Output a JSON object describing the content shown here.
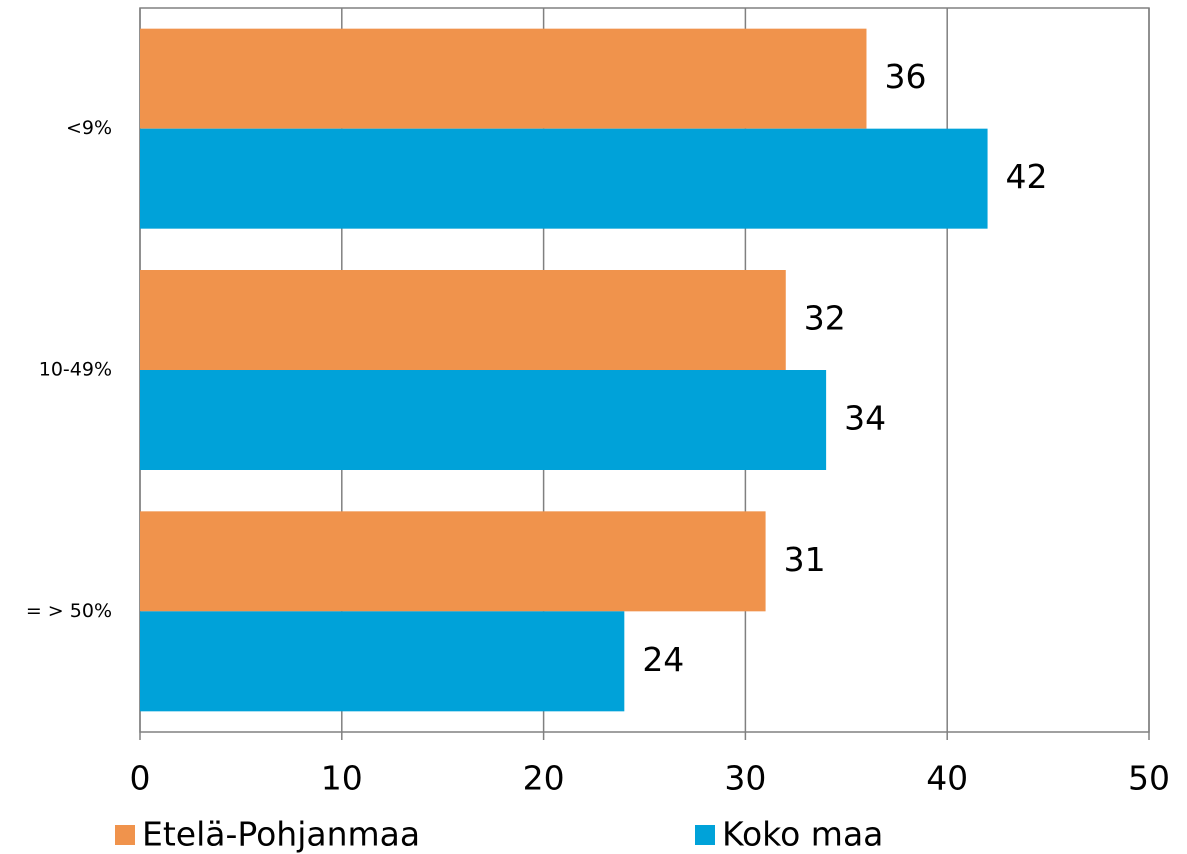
{
  "chart_data": {
    "type": "barh",
    "categories": [
      "<9%",
      "10-49%",
      "= > 50%"
    ],
    "series": [
      {
        "name": "Etelä-Pohjanmaa",
        "color": "#f0934c",
        "values": [
          36,
          32,
          31
        ]
      },
      {
        "name": "Koko maa",
        "color": "#00a2d9",
        "values": [
          42,
          34,
          24
        ]
      }
    ],
    "xlim": [
      0,
      50
    ],
    "xticks": [
      0,
      10,
      20,
      30,
      40,
      50
    ],
    "grid": true,
    "legend": "bottom"
  }
}
